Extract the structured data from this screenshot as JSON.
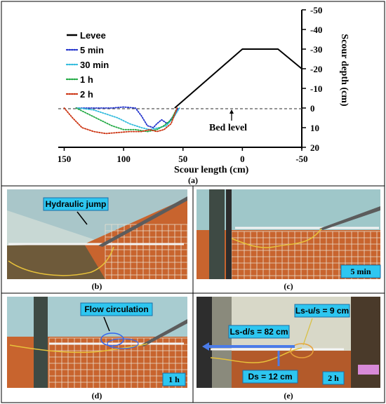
{
  "chart_data": {
    "type": "line",
    "panel_label": "(a)",
    "xlabel": "Scour length (cm)",
    "ylabel": "Scour depth (cm)",
    "xlim": [
      155,
      -50
    ],
    "ylim": [
      20,
      -50
    ],
    "x_ticks": [
      "150",
      "100",
      "50",
      "0",
      "-50"
    ],
    "y_ticks": [
      "-50",
      "-40",
      "-30",
      "-20",
      "-10",
      "0",
      "10",
      "20"
    ],
    "annotation": "Bed level",
    "series": [
      {
        "name": "Levee",
        "color": "#000000",
        "style": "solid",
        "x": [
          57,
          0,
          -30,
          -50
        ],
        "y": [
          0,
          -30,
          -30,
          -20
        ]
      },
      {
        "name": "5 min",
        "color": "#2233cc",
        "style": "dotted",
        "x": [
          140,
          125,
          110,
          100,
          90,
          85,
          80,
          75,
          72,
          68,
          63,
          58,
          54
        ],
        "y": [
          0,
          0,
          0,
          -0.5,
          0,
          4,
          9,
          10,
          8,
          6,
          8,
          4,
          0
        ]
      },
      {
        "name": "30 min",
        "color": "#33bbdd",
        "style": "dotted",
        "x": [
          138,
          125,
          115,
          105,
          95,
          85,
          78,
          70,
          64,
          58,
          53
        ],
        "y": [
          0,
          1,
          3,
          5,
          8,
          10,
          11,
          10,
          9,
          5,
          0
        ]
      },
      {
        "name": "1 h",
        "color": "#22aa44",
        "style": "dotted",
        "x": [
          140,
          130,
          120,
          110,
          100,
          90,
          80,
          72,
          66,
          60,
          55
        ],
        "y": [
          0,
          3,
          6,
          9,
          11,
          11,
          12,
          11,
          9,
          6,
          0
        ]
      },
      {
        "name": "2 h",
        "color": "#cc3311",
        "style": "dotted",
        "x": [
          150,
          143,
          135,
          125,
          115,
          105,
          95,
          85,
          78,
          72,
          66,
          60,
          55
        ],
        "y": [
          0,
          5,
          10,
          12,
          13,
          12.5,
          12,
          12,
          11,
          12,
          11,
          8,
          0
        ]
      }
    ]
  },
  "photos": [
    {
      "label": "(b)",
      "callout": "Hydraulic jump",
      "badge": ""
    },
    {
      "label": "(c)",
      "callout": "",
      "badge": "5 min"
    },
    {
      "label": "(d)",
      "callout": "Flow circulation",
      "badge": "1 h"
    },
    {
      "label": "(e)",
      "callout": "",
      "badge": "2 h",
      "measures": [
        "Ls-u/s = 9 cm",
        "Ls-d/s = 82 cm",
        "Ds = 12 cm"
      ]
    }
  ]
}
